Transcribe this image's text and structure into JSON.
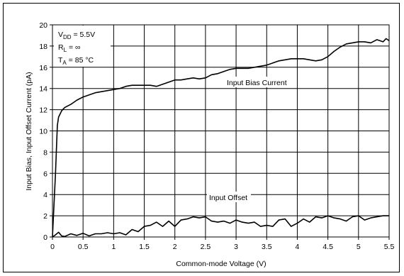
{
  "chart_data": {
    "type": "line",
    "xlabel": "Common-mode Voltage (V)",
    "ylabel": "Input Bias, Input Offset Current (pA)",
    "xlim": [
      0,
      5.5
    ],
    "ylim": [
      0,
      20
    ],
    "x_ticks": [
      "0",
      "0.5",
      "1",
      "1.5",
      "2",
      "2.5",
      "3",
      "3.5",
      "4",
      "4.5",
      "5",
      "5.5"
    ],
    "y_ticks": [
      "0",
      "2",
      "4",
      "6",
      "8",
      "10",
      "12",
      "14",
      "16",
      "18",
      "20"
    ],
    "grid": true,
    "conditions": {
      "vdd": {
        "sym": "V",
        "sub": "DD",
        "rest": " = 5.5V"
      },
      "rl": {
        "sym": "R",
        "sub": "L",
        "rest": " = ∞"
      },
      "ta": {
        "sym": "T",
        "sub": "A",
        "rest": " = 85 °C"
      }
    },
    "series": [
      {
        "name": "Input Bias Current",
        "x": [
          0,
          0.05,
          0.08,
          0.1,
          0.15,
          0.2,
          0.3,
          0.4,
          0.5,
          0.6,
          0.7,
          0.8,
          0.9,
          1.0,
          1.1,
          1.2,
          1.3,
          1.4,
          1.5,
          1.6,
          1.7,
          1.8,
          1.9,
          2.0,
          2.1,
          2.2,
          2.3,
          2.4,
          2.5,
          2.6,
          2.7,
          2.8,
          2.9,
          3.0,
          3.1,
          3.2,
          3.3,
          3.4,
          3.5,
          3.6,
          3.7,
          3.8,
          3.9,
          4.0,
          4.1,
          4.2,
          4.3,
          4.4,
          4.5,
          4.6,
          4.7,
          4.8,
          4.9,
          5.0,
          5.1,
          5.2,
          5.3,
          5.4,
          5.45,
          5.5
        ],
        "values": [
          0,
          6.0,
          10.5,
          11.3,
          11.9,
          12.2,
          12.5,
          12.9,
          13.2,
          13.4,
          13.6,
          13.7,
          13.8,
          13.9,
          14.0,
          14.2,
          14.3,
          14.3,
          14.3,
          14.3,
          14.2,
          14.4,
          14.6,
          14.8,
          14.8,
          14.9,
          15.0,
          14.9,
          15.0,
          15.3,
          15.4,
          15.6,
          15.8,
          15.9,
          15.9,
          15.9,
          16.0,
          16.1,
          16.2,
          16.4,
          16.6,
          16.7,
          16.8,
          16.8,
          16.8,
          16.7,
          16.6,
          16.7,
          17.0,
          17.5,
          17.9,
          18.2,
          18.3,
          18.4,
          18.4,
          18.3,
          18.6,
          18.4,
          18.7,
          18.5
        ]
      },
      {
        "name": "Input Offset",
        "x": [
          0,
          0.05,
          0.1,
          0.15,
          0.2,
          0.3,
          0.4,
          0.5,
          0.6,
          0.7,
          0.8,
          0.9,
          1.0,
          1.1,
          1.2,
          1.3,
          1.4,
          1.5,
          1.6,
          1.7,
          1.8,
          1.9,
          2.0,
          2.1,
          2.2,
          2.3,
          2.4,
          2.5,
          2.6,
          2.7,
          2.8,
          2.9,
          3.0,
          3.1,
          3.2,
          3.3,
          3.4,
          3.5,
          3.6,
          3.7,
          3.8,
          3.9,
          4.0,
          4.1,
          4.2,
          4.3,
          4.4,
          4.5,
          4.6,
          4.7,
          4.8,
          4.9,
          5.0,
          5.1,
          5.2,
          5.3,
          5.4,
          5.5
        ],
        "values": [
          0,
          0.2,
          0.45,
          0.1,
          0.05,
          0.3,
          0.15,
          0.35,
          0.1,
          0.3,
          0.3,
          0.4,
          0.3,
          0.4,
          0.2,
          0.7,
          0.5,
          1.0,
          1.1,
          1.4,
          1.0,
          1.5,
          1.0,
          1.6,
          1.7,
          1.9,
          1.8,
          1.9,
          1.5,
          1.4,
          1.5,
          1.3,
          1.6,
          1.4,
          1.3,
          1.4,
          1.0,
          1.1,
          1.0,
          1.6,
          1.7,
          1.0,
          1.3,
          1.7,
          1.4,
          1.9,
          1.8,
          2.0,
          1.8,
          1.7,
          1.5,
          1.9,
          2.0,
          1.6,
          1.8,
          1.9,
          2.0,
          2.0
        ]
      }
    ]
  }
}
